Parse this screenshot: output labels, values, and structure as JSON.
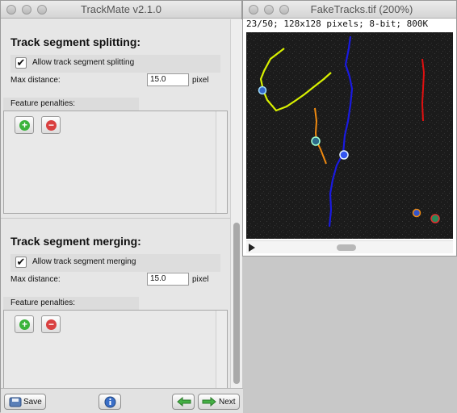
{
  "trackmate": {
    "title": "TrackMate v2.1.0",
    "splitting": {
      "heading": "Track segment splitting:",
      "checkbox_label": "Allow track segment splitting",
      "checked": true,
      "max_distance_label": "Max distance:",
      "max_distance_value": "15.0",
      "unit": "pixel",
      "penalties_label": "Feature penalties:"
    },
    "merging": {
      "heading": "Track segment merging:",
      "checkbox_label": "Allow track segment merging",
      "checked": true,
      "max_distance_label": "Max distance:",
      "max_distance_value": "15.0",
      "unit": "pixel",
      "penalties_label": "Feature penalties:"
    },
    "bottom": {
      "save_label": "Save",
      "next_label": "Next"
    }
  },
  "faketracks": {
    "title": "FakeTracks.tif (200%)",
    "status": "23/50; 128x128 pixels; 8-bit; 800K"
  },
  "colors": {
    "track_yellow": "#d8f000",
    "track_blue": "#1a1ae0",
    "track_orange": "#f08a10",
    "track_red": "#e01010",
    "add_green": "#3bb33b",
    "remove_red": "#d94040"
  }
}
